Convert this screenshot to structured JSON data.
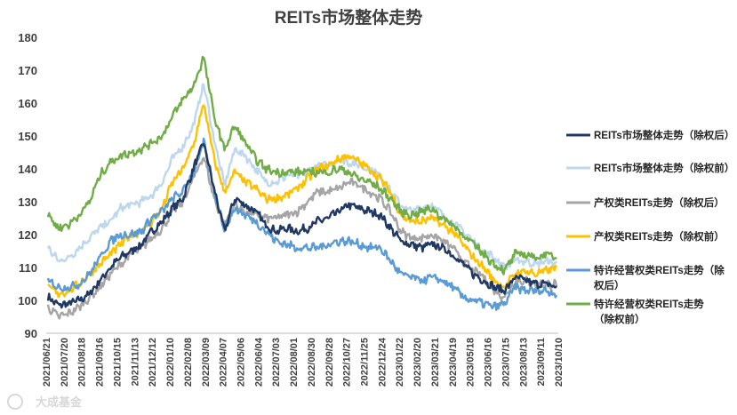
{
  "chart_data": {
    "type": "line",
    "title": "REITs市场整体走势",
    "xlabel": "",
    "ylabel": "",
    "ylim": [
      90,
      180
    ],
    "yticks": [
      90,
      100,
      110,
      120,
      130,
      140,
      150,
      160,
      170,
      180
    ],
    "grid": false,
    "legend_position": "right",
    "x_tick_labels": [
      "2021/06/21",
      "2021/07/20",
      "2021/08/18",
      "2021/09/16",
      "2021/10/15",
      "2021/11/13",
      "2021/12/12",
      "2022/01/10",
      "2022/02/08",
      "2022/03/09",
      "2022/04/07",
      "2022/05/06",
      "2022/06/04",
      "2022/07/03",
      "2022/08/01",
      "2022/08/30",
      "2022/09/28",
      "2022/10/27",
      "2022/11/25",
      "2022/12/24",
      "2023/01/22",
      "2023/02/20",
      "2023/03/21",
      "2023/04/19",
      "2023/05/18",
      "2023/06/16",
      "2023/07/15",
      "2023/08/13",
      "2023/09/11",
      "2023/10/10"
    ],
    "series": [
      {
        "name": "REITs市场整体走势（除权后）",
        "color": "#203864",
        "values": [
          101,
          98.5,
          99,
          100,
          102,
          106,
          110,
          113,
          115,
          117,
          121,
          124,
          128,
          131,
          140,
          148,
          134,
          121,
          131,
          129,
          127,
          123,
          121,
          122,
          121,
          122,
          124,
          125,
          127,
          129,
          128,
          127,
          126,
          122,
          118,
          117,
          116,
          117,
          116,
          114,
          111,
          108,
          106,
          104,
          103,
          107,
          106,
          105,
          105,
          104
        ]
      },
      {
        "name": "REITs市场整体走势（除权前）",
        "color": "#bdd7ee",
        "values": [
          116,
          112,
          113,
          116,
          119,
          122,
          124,
          128,
          129,
          130,
          132,
          136,
          143,
          147,
          153,
          166,
          149,
          135,
          146,
          144,
          140,
          136,
          136,
          138,
          138,
          139,
          141,
          141,
          143,
          142,
          141,
          140,
          138,
          133,
          129,
          127,
          128,
          129,
          126,
          124,
          121,
          118,
          115,
          113,
          110,
          112,
          112,
          111,
          112,
          111
        ]
      },
      {
        "name": "产权类REITs走势（除权后）",
        "color": "#a5a5a5",
        "values": [
          98,
          95,
          96,
          98,
          101,
          104,
          108,
          111,
          114,
          116,
          119,
          122,
          127,
          130,
          137,
          144,
          131,
          123,
          129,
          127,
          126,
          125,
          125,
          126,
          127,
          130,
          133,
          133,
          134,
          136,
          135,
          133,
          131,
          127,
          121,
          119,
          119,
          120,
          118,
          116,
          112,
          109,
          107,
          103,
          101,
          106,
          106,
          105,
          105,
          105
        ]
      },
      {
        "name": "产权类REITs走势（除权前）",
        "color": "#ffc000",
        "values": [
          104,
          102,
          103,
          105,
          108,
          111,
          114,
          117,
          120,
          121,
          124,
          128,
          136,
          140,
          147,
          160,
          143,
          133,
          139,
          136,
          134,
          131,
          131,
          132,
          134,
          137,
          140,
          141,
          143,
          144,
          142,
          140,
          137,
          133,
          126,
          124,
          124,
          125,
          123,
          121,
          117,
          113,
          110,
          106,
          104,
          108,
          109,
          108,
          109,
          110
        ]
      },
      {
        "name": "特许经营权类REITs走势（除权后）",
        "color": "#5b9bd5",
        "values": [
          106,
          104,
          104,
          105,
          108,
          113,
          118,
          120,
          120,
          121,
          125,
          127,
          131,
          133,
          139,
          148,
          133,
          122,
          128,
          126,
          124,
          121,
          118,
          117,
          116,
          116,
          116,
          117,
          118,
          118,
          117,
          116,
          116,
          112,
          108,
          107,
          106,
          107,
          106,
          104,
          101,
          100,
          99,
          98,
          99,
          104,
          103,
          103,
          103,
          102
        ]
      },
      {
        "name": "特许经营权类REITs走势\n（除权前）",
        "color": "#70ad47",
        "values": [
          126,
          122,
          123,
          126,
          130,
          138,
          142,
          144,
          145,
          146,
          148,
          150,
          156,
          161,
          165,
          174,
          156,
          146,
          153,
          148,
          143,
          140,
          139,
          139,
          139,
          139,
          139,
          139,
          140,
          139,
          137,
          136,
          134,
          131,
          127,
          126,
          127,
          128,
          125,
          123,
          120,
          117,
          114,
          111,
          109,
          114,
          114,
          113,
          114,
          113
        ]
      }
    ]
  },
  "watermark": "大成基金"
}
